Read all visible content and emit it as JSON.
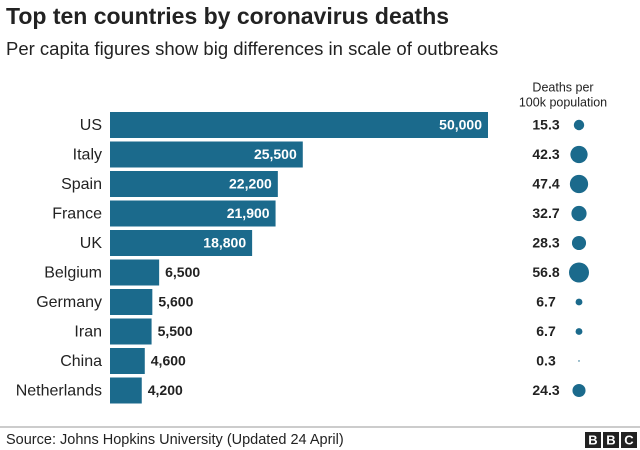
{
  "chart_data": {
    "type": "bar",
    "orientation": "horizontal",
    "title": "Top ten countries by coronavirus deaths",
    "subtitle": "Per capita figures show big differences in scale of outbreaks",
    "categories": [
      "US",
      "Italy",
      "Spain",
      "France",
      "UK",
      "Belgium",
      "Germany",
      "Iran",
      "China",
      "Netherlands"
    ],
    "values": [
      50000,
      25500,
      22200,
      21900,
      18800,
      6500,
      5600,
      5500,
      4600,
      4200
    ],
    "value_labels": [
      "50,000",
      "25,500",
      "22,200",
      "21,900",
      "18,800",
      "6,500",
      "5,600",
      "5,500",
      "4,600",
      "4,200"
    ],
    "color": "#1b6a8c",
    "per_capita": {
      "title_lines": [
        "Deaths per",
        "100k population"
      ],
      "values": [
        15.3,
        42.3,
        47.4,
        32.7,
        28.3,
        56.8,
        6.7,
        6.7,
        0.3,
        24.3
      ],
      "color": "#1b6a8c"
    },
    "source": "Source: Johns Hopkins University (Updated 24 April)",
    "logo": [
      "B",
      "B",
      "C"
    ]
  }
}
